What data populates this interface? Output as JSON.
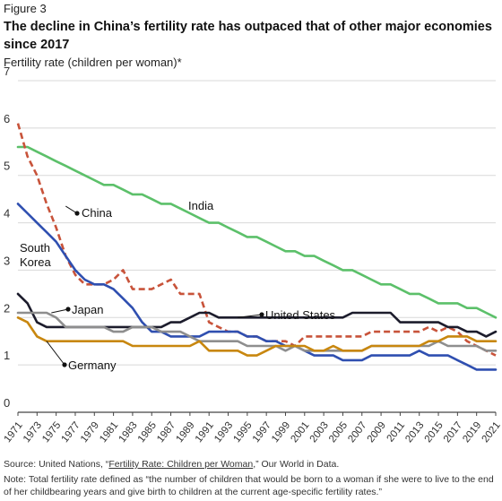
{
  "figure_label": "Figure 3",
  "title": "The decline in China’s fertility rate has outpaced that of other major economies since 2017",
  "source": {
    "prefix": "Source: United Nations, “",
    "link_text": "Fertility Rate: Children per Woman",
    "suffix": ",” Our World in Data."
  },
  "note": "Note: Total fertility rate defined as “the number of children that would be born to a woman if she were to live to the end of her childbearing years and give birth to children at the current age-specific fertility rates.”",
  "colors": {
    "India": "#5cc06a",
    "China": "#c8533a",
    "South Korea": "#2f4fb0",
    "United States": "#1c1c2c",
    "Japan": "#8e8e8e",
    "Germany": "#c8870f",
    "grid": "#d8d8d8",
    "axis": "#444444"
  },
  "chart_data": {
    "type": "line",
    "title": "The decline in China’s fertility rate has outpaced that of other major economies since 2017",
    "ylabel": "Fertility rate (children per woman)*",
    "xlabel": "",
    "ylim": [
      0,
      7
    ],
    "yticks": [
      0,
      1,
      2,
      3,
      4,
      5,
      6,
      7
    ],
    "grid": "horizontal",
    "legend": "inline labels",
    "x": [
      1971,
      1972,
      1973,
      1974,
      1975,
      1976,
      1977,
      1978,
      1979,
      1980,
      1981,
      1982,
      1983,
      1984,
      1985,
      1986,
      1987,
      1988,
      1989,
      1990,
      1991,
      1992,
      1993,
      1994,
      1995,
      1996,
      1997,
      1998,
      1999,
      2000,
      2001,
      2002,
      2003,
      2004,
      2005,
      2006,
      2007,
      2008,
      2009,
      2010,
      2011,
      2012,
      2013,
      2014,
      2015,
      2016,
      2017,
      2018,
      2019,
      2020,
      2021
    ],
    "xtick_labels": [
      "1971",
      "1973",
      "1975",
      "1977",
      "1979",
      "1981",
      "1983",
      "1985",
      "1987",
      "1989",
      "1991",
      "1993",
      "1995",
      "1997",
      "1999",
      "2001",
      "2003",
      "2005",
      "2007",
      "2009",
      "2011",
      "2013",
      "2015",
      "2017",
      "2019",
      "2021"
    ],
    "series": [
      {
        "name": "India",
        "label": "India",
        "style": "solid",
        "values": [
          5.6,
          5.6,
          5.5,
          5.4,
          5.3,
          5.2,
          5.1,
          5.0,
          4.9,
          4.8,
          4.8,
          4.7,
          4.6,
          4.6,
          4.5,
          4.4,
          4.4,
          4.3,
          4.2,
          4.1,
          4.0,
          4.0,
          3.9,
          3.8,
          3.7,
          3.7,
          3.6,
          3.5,
          3.4,
          3.4,
          3.3,
          3.3,
          3.2,
          3.1,
          3.0,
          3.0,
          2.9,
          2.8,
          2.7,
          2.7,
          2.6,
          2.5,
          2.5,
          2.4,
          2.3,
          2.3,
          2.3,
          2.2,
          2.2,
          2.1,
          2.0
        ]
      },
      {
        "name": "China",
        "label": "China",
        "style": "dashed",
        "values": [
          6.1,
          5.4,
          5.0,
          4.4,
          3.9,
          3.3,
          2.9,
          2.7,
          2.7,
          2.7,
          2.8,
          3.0,
          2.6,
          2.6,
          2.6,
          2.7,
          2.8,
          2.5,
          2.5,
          2.5,
          1.9,
          1.8,
          1.7,
          1.7,
          1.6,
          1.6,
          1.5,
          1.5,
          1.5,
          1.4,
          1.6,
          1.6,
          1.6,
          1.6,
          1.6,
          1.6,
          1.6,
          1.7,
          1.7,
          1.7,
          1.7,
          1.7,
          1.7,
          1.8,
          1.7,
          1.8,
          1.7,
          1.5,
          1.4,
          1.3,
          1.2
        ]
      },
      {
        "name": "South Korea",
        "label": "South\nKorea",
        "style": "solid",
        "values": [
          4.4,
          4.2,
          4.0,
          3.8,
          3.6,
          3.3,
          3.0,
          2.8,
          2.7,
          2.7,
          2.6,
          2.4,
          2.2,
          1.9,
          1.7,
          1.7,
          1.6,
          1.6,
          1.6,
          1.6,
          1.7,
          1.7,
          1.7,
          1.7,
          1.6,
          1.6,
          1.5,
          1.5,
          1.4,
          1.4,
          1.3,
          1.2,
          1.2,
          1.2,
          1.1,
          1.1,
          1.1,
          1.2,
          1.2,
          1.2,
          1.2,
          1.2,
          1.3,
          1.2,
          1.2,
          1.2,
          1.1,
          1.0,
          0.9,
          0.9,
          0.9
        ]
      },
      {
        "name": "United States",
        "label": "United States",
        "style": "solid",
        "values": [
          2.5,
          2.3,
          1.9,
          1.8,
          1.8,
          1.8,
          1.8,
          1.8,
          1.8,
          1.8,
          1.8,
          1.8,
          1.8,
          1.8,
          1.8,
          1.8,
          1.9,
          1.9,
          2.0,
          2.1,
          2.1,
          2.0,
          2.0,
          2.0,
          2.0,
          2.0,
          2.0,
          2.0,
          2.0,
          2.0,
          2.0,
          2.0,
          2.0,
          2.0,
          2.0,
          2.1,
          2.1,
          2.1,
          2.1,
          2.1,
          1.9,
          1.9,
          1.9,
          1.9,
          1.9,
          1.8,
          1.8,
          1.7,
          1.7,
          1.6,
          1.7
        ]
      },
      {
        "name": "Japan",
        "label": "Japan",
        "style": "solid",
        "values": [
          2.1,
          2.1,
          2.1,
          2.1,
          2.0,
          1.8,
          1.8,
          1.8,
          1.8,
          1.8,
          1.7,
          1.7,
          1.8,
          1.8,
          1.8,
          1.7,
          1.7,
          1.7,
          1.6,
          1.5,
          1.5,
          1.5,
          1.5,
          1.5,
          1.4,
          1.4,
          1.4,
          1.4,
          1.3,
          1.4,
          1.3,
          1.3,
          1.3,
          1.3,
          1.3,
          1.3,
          1.3,
          1.4,
          1.4,
          1.4,
          1.4,
          1.4,
          1.4,
          1.4,
          1.5,
          1.4,
          1.4,
          1.4,
          1.4,
          1.3,
          1.3
        ]
      },
      {
        "name": "Germany",
        "label": "Germany",
        "style": "solid",
        "values": [
          2.0,
          1.9,
          1.6,
          1.5,
          1.5,
          1.5,
          1.5,
          1.5,
          1.5,
          1.5,
          1.5,
          1.5,
          1.4,
          1.4,
          1.4,
          1.4,
          1.4,
          1.4,
          1.4,
          1.5,
          1.3,
          1.3,
          1.3,
          1.3,
          1.2,
          1.2,
          1.3,
          1.4,
          1.4,
          1.4,
          1.4,
          1.3,
          1.3,
          1.4,
          1.3,
          1.3,
          1.3,
          1.4,
          1.4,
          1.4,
          1.4,
          1.4,
          1.4,
          1.5,
          1.5,
          1.6,
          1.6,
          1.6,
          1.5,
          1.5,
          1.5
        ]
      }
    ]
  }
}
